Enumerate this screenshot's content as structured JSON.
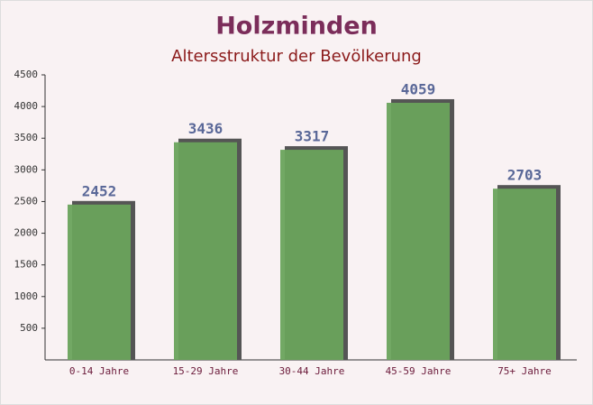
{
  "chart_data": {
    "type": "bar",
    "title": "Holzminden",
    "subtitle": "Altersstruktur der Bevölkerung",
    "categories": [
      "0-14 Jahre",
      "15-29 Jahre",
      "30-44 Jahre",
      "45-59 Jahre",
      "75+ Jahre"
    ],
    "values": [
      2452,
      3436,
      3317,
      4059,
      2703
    ],
    "color": "#6aa35c",
    "ylim": [
      0,
      4500
    ],
    "yticks": [
      500,
      1000,
      1500,
      2000,
      2500,
      3000,
      3500,
      4000,
      4500
    ]
  }
}
